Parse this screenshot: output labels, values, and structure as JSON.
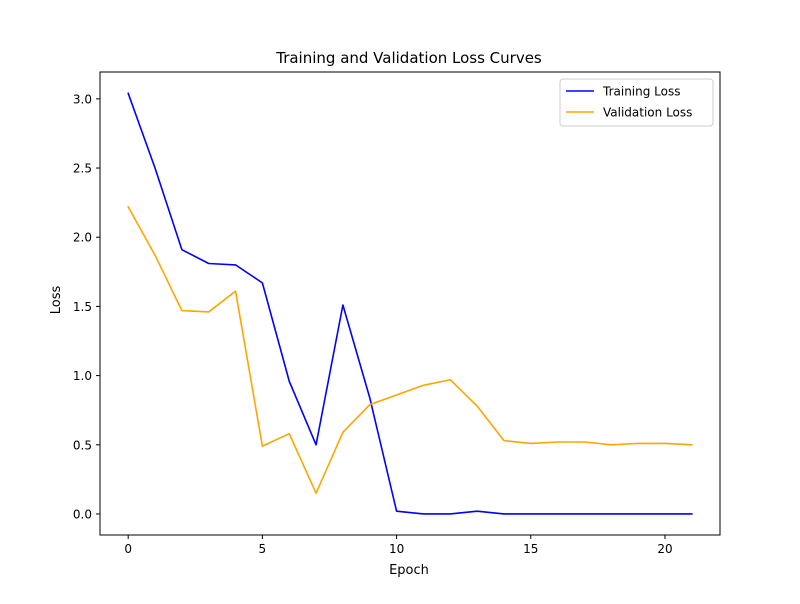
{
  "chart_data": {
    "type": "line",
    "title": "Training and Validation Loss Curves",
    "xlabel": "Epoch",
    "ylabel": "Loss",
    "xlim": [
      -1.05,
      22.05
    ],
    "ylim": [
      -0.152,
      3.194
    ],
    "xticks": [
      0,
      5,
      10,
      15,
      20
    ],
    "xtick_labels": [
      "0",
      "5",
      "10",
      "15",
      "20"
    ],
    "yticks": [
      0.0,
      0.5,
      1.0,
      1.5,
      2.0,
      2.5,
      3.0
    ],
    "ytick_labels": [
      "0.0",
      "0.5",
      "1.0",
      "1.5",
      "2.0",
      "2.5",
      "3.0"
    ],
    "grid": false,
    "legend_position": "upper right",
    "x": [
      0,
      1,
      2,
      3,
      4,
      5,
      6,
      7,
      8,
      9,
      10,
      11,
      12,
      13,
      14,
      15,
      16,
      17,
      18,
      19,
      20,
      21
    ],
    "series": [
      {
        "name": "Training Loss",
        "color": "#0000ff",
        "values": [
          3.04,
          2.5,
          1.91,
          1.81,
          1.8,
          1.67,
          0.96,
          0.5,
          1.51,
          0.84,
          0.02,
          0.0,
          0.0,
          0.02,
          0.0,
          0.0,
          0.0,
          0.0,
          0.0,
          0.0,
          0.0,
          0.0
        ]
      },
      {
        "name": "Validation Loss",
        "color": "#ffa500",
        "values": [
          2.22,
          1.87,
          1.47,
          1.46,
          1.61,
          0.49,
          0.58,
          0.15,
          0.59,
          0.79,
          0.86,
          0.93,
          0.97,
          0.78,
          0.53,
          0.51,
          0.52,
          0.52,
          0.5,
          0.51,
          0.51,
          0.5
        ]
      }
    ]
  }
}
